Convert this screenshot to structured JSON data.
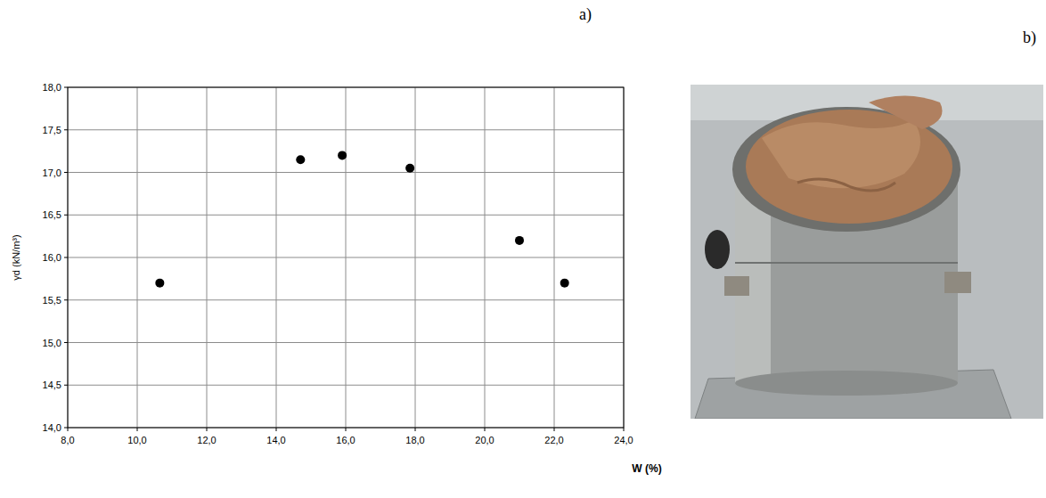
{
  "chart_data": {
    "type": "scatter",
    "x_label": "W (%)",
    "y_label": "γd (kN/m³)",
    "x": [
      10.65,
      14.7,
      15.9,
      17.85,
      21.0,
      22.3
    ],
    "values": [
      15.7,
      17.15,
      17.2,
      17.05,
      16.2,
      15.7
    ],
    "color": "#000000",
    "marker": "circle",
    "xlim": [
      8,
      24
    ],
    "ylim": [
      14,
      18
    ],
    "xticks": [
      {
        "value": 8,
        "label": "8,0"
      },
      {
        "value": 10,
        "label": "10,0"
      },
      {
        "value": 12,
        "label": "12,0"
      },
      {
        "value": 14,
        "label": "14,0"
      },
      {
        "value": 16,
        "label": "16,0"
      },
      {
        "value": 18,
        "label": "18,0"
      },
      {
        "value": 20,
        "label": "20,0"
      },
      {
        "value": 22,
        "label": "22,0"
      },
      {
        "value": 24,
        "label": "24,0"
      }
    ],
    "yticks": [
      {
        "value": 14,
        "label": "14,0"
      },
      {
        "value": 14.5,
        "label": "14,5"
      },
      {
        "value": 15,
        "label": "15,0"
      },
      {
        "value": 15.5,
        "label": "15,5"
      },
      {
        "value": 16,
        "label": "16,0"
      },
      {
        "value": 16.5,
        "label": "16,5"
      },
      {
        "value": 17,
        "label": "17,0"
      },
      {
        "value": 17.5,
        "label": "17,5"
      },
      {
        "value": 18,
        "label": "18,0"
      }
    ],
    "grid": true
  },
  "panel_labels": [
    "a)",
    "b)"
  ]
}
